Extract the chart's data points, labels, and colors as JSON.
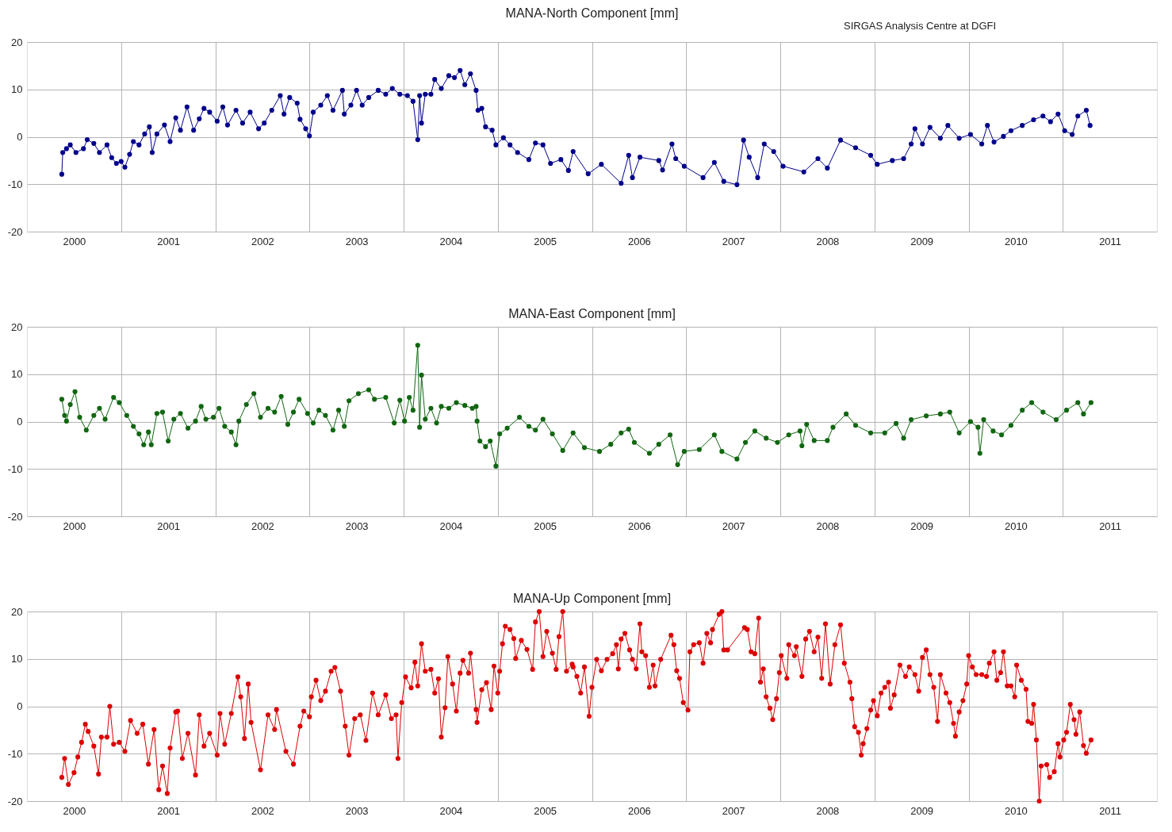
{
  "chart_data": [
    {
      "type": "line",
      "title": "MANA-North Component [mm]",
      "color": "#00008b",
      "marker": "circle",
      "grid": true,
      "annotations": [
        "SIRGAS Analysis Centre at DGFI"
      ],
      "xlim": [
        1999.5,
        2011.5
      ],
      "ylim": [
        -20,
        20
      ],
      "yticks": [
        -20,
        -10,
        0,
        10,
        20
      ],
      "xticks": [
        2000,
        2001,
        2002,
        2003,
        2004,
        2005,
        2006,
        2007,
        2008,
        2009,
        2010,
        2011,
        {
          "value": 2000.5,
          "label": null
        },
        {
          "value": 2001.5,
          "label": null
        },
        {
          "value": 2002.5,
          "label": null
        },
        {
          "value": 2003.5,
          "label": null
        },
        {
          "value": 2004.5,
          "label": null
        },
        {
          "value": 2005.5,
          "label": null
        },
        {
          "value": 2006.5,
          "label": null
        },
        {
          "value": 2007.5,
          "label": null
        },
        {
          "value": 2008.5,
          "label": null
        },
        {
          "value": 2009.5,
          "label": null
        },
        {
          "value": 2010.5,
          "label": null
        }
      ],
      "x": [
        1999.87,
        1999.88,
        1999.92,
        1999.96,
        2000.02,
        2000.1,
        2000.14,
        2000.21,
        2000.27,
        2000.35,
        2000.4,
        2000.45,
        2000.5,
        2000.54,
        2000.59,
        2000.63,
        2000.69,
        2000.75,
        2000.8,
        2000.83,
        2000.88,
        2000.96,
        2001.02,
        2001.08,
        2001.13,
        2001.2,
        2001.27,
        2001.33,
        2001.38,
        2001.44,
        2001.52,
        2001.58,
        2001.63,
        2001.72,
        2001.79,
        2001.87,
        2001.96,
        2002.02,
        2002.1,
        2002.19,
        2002.23,
        2002.29,
        2002.37,
        2002.4,
        2002.46,
        2002.5,
        2002.54,
        2002.62,
        2002.69,
        2002.75,
        2002.85,
        2002.87,
        2002.94,
        2003.0,
        2003.06,
        2003.13,
        2003.23,
        2003.31,
        2003.38,
        2003.46,
        2003.54,
        2003.6,
        2003.65,
        2003.67,
        2003.69,
        2003.73,
        2003.79,
        2003.83,
        2003.9,
        2003.98,
        2004.04,
        2004.1,
        2004.15,
        2004.21,
        2004.27,
        2004.29,
        2004.33,
        2004.37,
        2004.44,
        2004.48,
        2004.56,
        2004.63,
        2004.71,
        2004.83,
        2004.9,
        2004.98,
        2005.06,
        2005.17,
        2005.25,
        2005.3,
        2005.46,
        2005.6,
        2005.81,
        2005.89,
        2005.93,
        2006.01,
        2006.21,
        2006.25,
        2006.35,
        2006.39,
        2006.48,
        2006.68,
        2006.8,
        2006.9,
        2007.04,
        2007.11,
        2007.17,
        2007.26,
        2007.33,
        2007.43,
        2007.53,
        2007.75,
        2007.9,
        2008.0,
        2008.14,
        2008.3,
        2008.46,
        2008.53,
        2008.69,
        2008.81,
        2008.89,
        2008.93,
        2009.01,
        2009.09,
        2009.2,
        2009.28,
        2009.4,
        2009.52,
        2009.64,
        2009.7,
        2009.77,
        2009.87,
        2009.95,
        2010.07,
        2010.19,
        2010.29,
        2010.37,
        2010.45,
        2010.52,
        2010.6,
        2010.66,
        2010.75,
        2010.79
      ],
      "values": [
        -7.9,
        -3.3,
        -2.5,
        -1.7,
        -3.3,
        -2.5,
        -0.6,
        -1.4,
        -3.3,
        -1.7,
        -4.4,
        -5.6,
        -5.2,
        -6.4,
        -3.7,
        -1.0,
        -1.7,
        0.6,
        2.1,
        -3.3,
        0.6,
        2.5,
        -1.0,
        4.0,
        1.4,
        6.3,
        1.4,
        3.8,
        6.0,
        5.2,
        3.3,
        6.3,
        2.5,
        5.6,
        2.9,
        5.2,
        1.7,
        2.9,
        5.6,
        8.7,
        4.8,
        8.3,
        7.1,
        3.7,
        1.7,
        0.2,
        5.2,
        6.7,
        8.7,
        5.6,
        9.8,
        4.8,
        6.7,
        9.8,
        6.7,
        8.3,
        9.8,
        9.0,
        10.2,
        9.0,
        8.7,
        7.5,
        -0.6,
        8.7,
        2.9,
        9.0,
        9.0,
        12.1,
        10.2,
        12.9,
        12.5,
        14.0,
        11.0,
        13.3,
        9.8,
        5.6,
        6.0,
        2.1,
        1.4,
        -1.7,
        -0.2,
        -1.7,
        -3.3,
        -4.8,
        -1.3,
        -1.7,
        -5.6,
        -4.8,
        -7.1,
        -3.1,
        -7.8,
        -5.8,
        -9.8,
        -3.9,
        -8.6,
        -4.3,
        -5.0,
        -7.0,
        -1.5,
        -4.6,
        -6.2,
        -8.6,
        -5.4,
        -9.4,
        -10.1,
        -0.7,
        -4.3,
        -8.6,
        -1.5,
        -3.1,
        -6.2,
        -7.4,
        -4.6,
        -6.6,
        -0.7,
        -2.3,
        -3.9,
        -5.8,
        -5.0,
        -4.6,
        -1.5,
        1.7,
        -1.5,
        2.0,
        -0.3,
        2.4,
        -0.3,
        0.5,
        -1.5,
        2.4,
        -1.1,
        0.1,
        1.3,
        2.4,
        3.6,
        4.4,
        3.2,
        4.8,
        1.3,
        0.5,
        4.4,
        5.6,
        2.4
      ]
    },
    {
      "type": "line",
      "title": "MANA-East Component [mm]",
      "color": "#116611",
      "marker": "circle",
      "grid": true,
      "xlim": [
        1999.5,
        2011.5
      ],
      "ylim": [
        -20,
        20
      ],
      "yticks": [
        -20,
        -10,
        0,
        10,
        20
      ],
      "xticks": [
        2000,
        2001,
        2002,
        2003,
        2004,
        2005,
        2006,
        2007,
        2008,
        2009,
        2010,
        2011,
        {
          "value": 2000.5,
          "label": null
        },
        {
          "value": 2001.5,
          "label": null
        },
        {
          "value": 2002.5,
          "label": null
        },
        {
          "value": 2003.5,
          "label": null
        },
        {
          "value": 2004.5,
          "label": null
        },
        {
          "value": 2005.5,
          "label": null
        },
        {
          "value": 2006.5,
          "label": null
        },
        {
          "value": 2007.5,
          "label": null
        },
        {
          "value": 2008.5,
          "label": null
        },
        {
          "value": 2009.5,
          "label": null
        },
        {
          "value": 2010.5,
          "label": null
        }
      ],
      "x": [
        1999.87,
        1999.9,
        1999.92,
        1999.96,
        2000.01,
        2000.06,
        2000.13,
        2000.21,
        2000.27,
        2000.33,
        2000.42,
        2000.48,
        2000.56,
        2000.63,
        2000.69,
        2000.74,
        2000.79,
        2000.82,
        2000.88,
        2000.94,
        2001.0,
        2001.06,
        2001.13,
        2001.21,
        2001.29,
        2001.35,
        2001.4,
        2001.48,
        2001.54,
        2001.6,
        2001.67,
        2001.72,
        2001.75,
        2001.83,
        2001.91,
        2001.98,
        2002.06,
        2002.13,
        2002.2,
        2002.27,
        2002.33,
        2002.39,
        2002.48,
        2002.54,
        2002.6,
        2002.67,
        2002.75,
        2002.81,
        2002.87,
        2002.92,
        2003.02,
        2003.13,
        2003.19,
        2003.31,
        2003.4,
        2003.46,
        2003.51,
        2003.56,
        2003.6,
        2003.65,
        2003.67,
        2003.69,
        2003.73,
        2003.79,
        2003.85,
        2003.9,
        2003.98,
        2004.06,
        2004.15,
        2004.23,
        2004.27,
        2004.28,
        2004.31,
        2004.37,
        2004.42,
        2004.48,
        2004.52,
        2004.6,
        2004.73,
        2004.83,
        2004.9,
        2004.98,
        2005.08,
        2005.19,
        2005.3,
        2005.42,
        2005.58,
        2005.7,
        2005.81,
        2005.89,
        2005.95,
        2006.11,
        2006.21,
        2006.33,
        2006.41,
        2006.48,
        2006.64,
        2006.8,
        2006.88,
        2007.04,
        2007.13,
        2007.23,
        2007.35,
        2007.47,
        2007.59,
        2007.71,
        2007.73,
        2007.78,
        2007.86,
        2008.0,
        2008.06,
        2008.2,
        2008.3,
        2008.46,
        2008.61,
        2008.73,
        2008.81,
        2008.89,
        2009.05,
        2009.2,
        2009.3,
        2009.4,
        2009.52,
        2009.6,
        2009.62,
        2009.66,
        2009.76,
        2009.85,
        2009.95,
        2010.07,
        2010.17,
        2010.29,
        2010.43,
        2010.54,
        2010.66,
        2010.72,
        2010.8
      ],
      "values": [
        4.7,
        1.3,
        0.1,
        3.6,
        6.3,
        0.9,
        -1.8,
        1.3,
        2.8,
        0.5,
        5.1,
        4.0,
        1.3,
        -1.0,
        -2.6,
        -4.9,
        -2.2,
        -4.9,
        1.7,
        2.0,
        -4.1,
        0.5,
        1.7,
        -1.4,
        0.1,
        3.2,
        0.5,
        0.9,
        2.8,
        -1.0,
        -2.2,
        -4.9,
        0.1,
        3.6,
        5.9,
        0.9,
        2.8,
        2.0,
        5.3,
        -0.6,
        2.0,
        4.7,
        1.7,
        -0.3,
        2.4,
        1.3,
        -1.8,
        2.4,
        -1.0,
        4.4,
        5.9,
        6.7,
        4.7,
        5.1,
        -0.3,
        4.5,
        0.1,
        5.1,
        2.4,
        16.1,
        -1.2,
        9.8,
        0.5,
        2.8,
        -0.3,
        3.2,
        2.8,
        4.0,
        3.4,
        2.8,
        3.2,
        0.1,
        -4.1,
        -5.3,
        -4.1,
        -9.4,
        -2.6,
        -1.4,
        0.9,
        -1.0,
        -1.8,
        0.5,
        -2.6,
        -6.1,
        -2.4,
        -5.5,
        -6.3,
        -4.8,
        -2.4,
        -1.6,
        -4.4,
        -6.7,
        -4.8,
        -2.8,
        -9.1,
        -6.3,
        -5.9,
        -2.8,
        -6.3,
        -7.9,
        -4.4,
        -2.0,
        -3.5,
        -4.4,
        -2.8,
        -2.0,
        -5.1,
        -0.6,
        -4.0,
        -4.0,
        -1.2,
        1.6,
        -0.8,
        -2.4,
        -2.4,
        -0.4,
        -3.5,
        0.4,
        1.2,
        1.6,
        2.0,
        -2.4,
        0,
        -1.2,
        -6.7,
        0.4,
        -2.0,
        -2.8,
        -0.8,
        2.4,
        4.0,
        2.0,
        0.4,
        2.4,
        4.0,
        1.6,
        4.0
      ]
    },
    {
      "type": "line",
      "title": "MANA-Up Component [mm]",
      "color": "#dd0000",
      "marker": "circle",
      "grid": true,
      "xlim": [
        1999.5,
        2011.5
      ],
      "ylim": [
        -20,
        20
      ],
      "yticks": [
        -20,
        -10,
        0,
        10,
        20
      ],
      "xticks": [
        2000,
        2001,
        2002,
        2003,
        2004,
        2005,
        2006,
        2007,
        2008,
        2009,
        2010,
        2011,
        {
          "value": 2000.5,
          "label": null
        },
        {
          "value": 2001.5,
          "label": null
        },
        {
          "value": 2002.5,
          "label": null
        },
        {
          "value": 2003.5,
          "label": null
        },
        {
          "value": 2004.5,
          "label": null
        },
        {
          "value": 2005.5,
          "label": null
        },
        {
          "value": 2006.5,
          "label": null
        },
        {
          "value": 2007.5,
          "label": null
        },
        {
          "value": 2008.5,
          "label": null
        },
        {
          "value": 2009.5,
          "label": null
        },
        {
          "value": 2010.5,
          "label": null
        }
      ],
      "x": [
        1999.87,
        1999.9,
        1999.94,
        2000.0,
        2000.04,
        2000.08,
        2000.12,
        2000.15,
        2000.21,
        2000.26,
        2000.29,
        2000.35,
        2000.38,
        2000.42,
        2000.48,
        2000.54,
        2000.6,
        2000.67,
        2000.73,
        2000.79,
        2000.85,
        2000.9,
        2000.94,
        2000.99,
        2001.02,
        2001.08,
        2001.1,
        2001.15,
        2001.21,
        2001.29,
        2001.33,
        2001.38,
        2001.44,
        2001.52,
        2001.55,
        2001.6,
        2001.67,
        2001.74,
        2001.77,
        2001.81,
        2001.85,
        2001.88,
        2001.98,
        2002.06,
        2002.13,
        2002.15,
        2002.25,
        2002.33,
        2002.4,
        2002.44,
        2002.5,
        2002.52,
        2002.57,
        2002.62,
        2002.67,
        2002.73,
        2002.77,
        2002.83,
        2002.88,
        2002.92,
        2002.98,
        2003.04,
        2003.1,
        2003.17,
        2003.23,
        2003.31,
        2003.37,
        2003.42,
        2003.44,
        2003.48,
        2003.52,
        2003.58,
        2003.62,
        2003.65,
        2003.69,
        2003.73,
        2003.79,
        2003.83,
        2003.87,
        2003.9,
        2003.94,
        2003.97,
        2004.02,
        2004.06,
        2004.1,
        2004.13,
        2004.19,
        2004.21,
        2004.27,
        2004.28,
        2004.33,
        2004.38,
        2004.43,
        2004.46,
        2004.5,
        2004.52,
        2004.55,
        2004.58,
        2004.63,
        2004.67,
        2004.69,
        2004.75,
        2004.81,
        2004.87,
        2004.9,
        2004.94,
        2004.98,
        2005.02,
        2005.08,
        2005.12,
        2005.15,
        2005.19,
        2005.23,
        2005.29,
        2005.3,
        2005.34,
        2005.38,
        2005.42,
        2005.47,
        2005.5,
        2005.55,
        2005.6,
        2005.66,
        2005.72,
        2005.76,
        2005.78,
        2005.81,
        2005.85,
        2005.9,
        2005.93,
        2005.97,
        2006.01,
        2006.03,
        2006.07,
        2006.11,
        2006.15,
        2006.17,
        2006.23,
        2006.34,
        2006.37,
        2006.4,
        2006.43,
        2006.47,
        2006.52,
        2006.54,
        2006.58,
        2006.64,
        2006.68,
        2006.72,
        2006.76,
        2006.78,
        2006.85,
        2006.88,
        2006.9,
        2006.94,
        2007.12,
        2007.15,
        2007.19,
        2007.23,
        2007.27,
        2007.29,
        2007.32,
        2007.35,
        2007.39,
        2007.42,
        2007.46,
        2007.49,
        2007.51,
        2007.57,
        2007.59,
        2007.65,
        2007.67,
        2007.73,
        2007.77,
        2007.81,
        2007.86,
        2007.9,
        2007.94,
        2007.98,
        2008.03,
        2008.08,
        2008.14,
        2008.18,
        2008.24,
        2008.26,
        2008.29,
        2008.33,
        2008.36,
        2008.38,
        2008.42,
        2008.46,
        2008.49,
        2008.53,
        2008.57,
        2008.61,
        2008.65,
        2008.67,
        2008.71,
        2008.77,
        2008.83,
        2008.87,
        2008.93,
        2008.97,
        2009.01,
        2009.05,
        2009.09,
        2009.13,
        2009.17,
        2009.2,
        2009.26,
        2009.3,
        2009.34,
        2009.36,
        2009.4,
        2009.44,
        2009.48,
        2009.5,
        2009.54,
        2009.58,
        2009.64,
        2009.69,
        2009.72,
        2009.77,
        2009.8,
        2009.84,
        2009.87,
        2009.91,
        2009.95,
        2009.99,
        2010.01,
        2010.06,
        2010.11,
        2010.13,
        2010.17,
        2010.19,
        2010.22,
        2010.25,
        2010.27,
        2010.33,
        2010.36,
        2010.41,
        2010.45,
        2010.47,
        2010.51,
        2010.54,
        2010.58,
        2010.62,
        2010.64,
        2010.68,
        2010.72,
        2010.75,
        2010.8
      ],
      "values": [
        -15,
        -11,
        -16.5,
        -14,
        -10.7,
        -7.6,
        -3.8,
        -5.3,
        -8.4,
        -14.3,
        -6.5,
        -6.5,
        0,
        -8,
        -7.6,
        -9.5,
        -3,
        -5.7,
        -3.8,
        -12.2,
        -4.9,
        -17.6,
        -12.6,
        -18.4,
        -8.8,
        -1.2,
        -1,
        -11,
        -5.7,
        -14.5,
        -1.8,
        -8.4,
        -5.7,
        -10.3,
        -1.5,
        -8,
        -1.5,
        6.2,
        2,
        -6.8,
        4.7,
        -3.4,
        -13.4,
        -1.8,
        -4.9,
        -0.7,
        -9.5,
        -12.2,
        -4.2,
        -1,
        -2.2,
        2,
        5.5,
        1.2,
        3.2,
        7.4,
        8.2,
        3.2,
        -4.2,
        -10.3,
        -2.6,
        -1.8,
        -7.2,
        2.8,
        -1.8,
        2.4,
        -2.6,
        -1.8,
        -11,
        0.8,
        6.2,
        3.9,
        9.3,
        4.3,
        13.2,
        7.4,
        7.8,
        2.8,
        5.8,
        -6.5,
        -0.3,
        10.5,
        4.7,
        -1,
        7,
        9.7,
        7,
        11.2,
        -0.7,
        -3.4,
        3.5,
        5,
        -0.7,
        8.5,
        2.8,
        7.4,
        13.2,
        16.9,
        16.2,
        14.3,
        10.1,
        13.9,
        12,
        7.8,
        17.8,
        20,
        10.5,
        15.8,
        11.2,
        7.8,
        14.7,
        20,
        7.4,
        8.9,
        8.3,
        6.3,
        2.8,
        8.3,
        -2.1,
        4,
        9.9,
        7.5,
        9.9,
        11.1,
        13,
        7.9,
        14.2,
        15.4,
        11.9,
        9.9,
        7.9,
        17.4,
        11.5,
        10.7,
        4,
        8.7,
        4.3,
        9.9,
        15,
        13,
        7.5,
        5.9,
        0.8,
        -0.8,
        11.5,
        13,
        13.4,
        9.1,
        15.4,
        13.4,
        16.2,
        19.4,
        20,
        11.9,
        11.9,
        16.6,
        16.2,
        11.5,
        11.1,
        18.6,
        5.1,
        7.9,
        2,
        -0.4,
        -2.8,
        1.6,
        7.1,
        10.7,
        5.9,
        13,
        10.7,
        12.6,
        6.3,
        14.2,
        15.8,
        11.5,
        14.6,
        5.9,
        17.4,
        4.7,
        13,
        17.2,
        9.1,
        5.1,
        1.6,
        -4.3,
        -5.5,
        -10.3,
        -7.9,
        -4.7,
        -0.8,
        1.2,
        -2,
        2.8,
        4,
        5.1,
        -0.4,
        2.4,
        8.7,
        6.3,
        8.3,
        6.7,
        3.2,
        10.3,
        11.9,
        6.7,
        4,
        -3.2,
        6.7,
        2.8,
        0.8,
        -3.6,
        -6.3,
        -1.2,
        1.2,
        4.7,
        10.7,
        8.3,
        6.7,
        6.7,
        6.3,
        9.1,
        11.5,
        5.5,
        7.1,
        11.5,
        4.3,
        4.3,
        2,
        8.7,
        5.5,
        3.6,
        -3.2,
        -3.6,
        0.4,
        -7.1,
        -20,
        -12.6,
        -12.3,
        -15,
        -13.8,
        -7.9,
        -10.7,
        -7.1,
        -5.5,
        0.4,
        -2.8,
        -5.9,
        -1.2,
        -8.3,
        -9.9,
        -7.1
      ]
    }
  ]
}
